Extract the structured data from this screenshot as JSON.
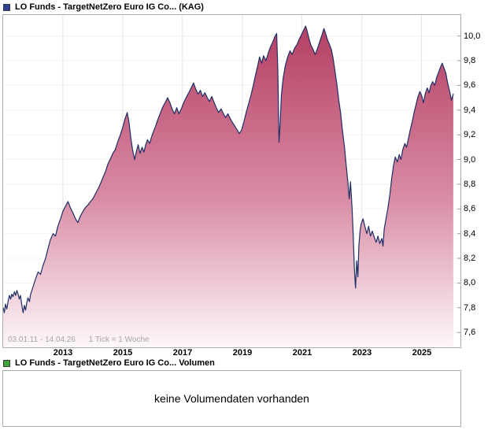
{
  "price_panel": {
    "legend_color": "#2e3f96",
    "title": "LO Funds - TargetNetZero Euro IG Co... (KAG)"
  },
  "volume_panel": {
    "legend_color": "#3da43b",
    "title": "LO Funds - TargetNetZero Euro IG Co... Volumen",
    "message": "keine Volumendaten vorhanden"
  },
  "chart_data": {
    "type": "area",
    "title": "LO Funds - TargetNetZero Euro IG Co... (KAG)",
    "period_label": "03.01.11 - 14.04.26",
    "tick_label": "1 Tick = 1 Woche",
    "xlabel": "",
    "ylabel": "",
    "xlim": [
      2011.0,
      2026.3
    ],
    "ylim": [
      7.48,
      10.17
    ],
    "x_ticks": [
      2013,
      2015,
      2017,
      2019,
      2021,
      2023,
      2025
    ],
    "y_ticks": [
      {
        "v": 7.6,
        "label": "7,6"
      },
      {
        "v": 7.8,
        "label": "7,8"
      },
      {
        "v": 8.0,
        "label": "8,0"
      },
      {
        "v": 8.2,
        "label": "8,2"
      },
      {
        "v": 8.4,
        "label": "8,4"
      },
      {
        "v": 8.6,
        "label": "8,6"
      },
      {
        "v": 8.8,
        "label": "8,8"
      },
      {
        "v": 9.0,
        "label": "9,0"
      },
      {
        "v": 9.2,
        "label": "9,2"
      },
      {
        "v": 9.4,
        "label": "9,4"
      },
      {
        "v": 9.6,
        "label": "9,6"
      },
      {
        "v": 9.8,
        "label": "9,8"
      },
      {
        "v": 10.0,
        "label": "10,0"
      }
    ],
    "grid": true,
    "legend_position": "top-left",
    "line_color": "#1e2f66",
    "fill_top": "#b23a5f",
    "fill_mid": "#d98ca4",
    "fill_bottom": "#fdf7f9",
    "points": [
      [
        2011.0,
        7.8
      ],
      [
        2011.04,
        7.76
      ],
      [
        2011.08,
        7.83
      ],
      [
        2011.12,
        7.79
      ],
      [
        2011.17,
        7.86
      ],
      [
        2011.21,
        7.9
      ],
      [
        2011.25,
        7.87
      ],
      [
        2011.29,
        7.91
      ],
      [
        2011.33,
        7.89
      ],
      [
        2011.38,
        7.93
      ],
      [
        2011.42,
        7.9
      ],
      [
        2011.46,
        7.94
      ],
      [
        2011.5,
        7.91
      ],
      [
        2011.54,
        7.87
      ],
      [
        2011.58,
        7.9
      ],
      [
        2011.62,
        7.83
      ],
      [
        2011.67,
        7.76
      ],
      [
        2011.71,
        7.82
      ],
      [
        2011.75,
        7.78
      ],
      [
        2011.79,
        7.84
      ],
      [
        2011.83,
        7.88
      ],
      [
        2011.88,
        7.85
      ],
      [
        2011.92,
        7.91
      ],
      [
        2011.96,
        7.94
      ],
      [
        2012.0,
        7.97
      ],
      [
        2012.08,
        8.03
      ],
      [
        2012.17,
        8.09
      ],
      [
        2012.25,
        8.07
      ],
      [
        2012.33,
        8.14
      ],
      [
        2012.42,
        8.2
      ],
      [
        2012.5,
        8.28
      ],
      [
        2012.58,
        8.35
      ],
      [
        2012.67,
        8.4
      ],
      [
        2012.75,
        8.38
      ],
      [
        2012.83,
        8.46
      ],
      [
        2012.92,
        8.52
      ],
      [
        2013.0,
        8.58
      ],
      [
        2013.08,
        8.62
      ],
      [
        2013.17,
        8.66
      ],
      [
        2013.25,
        8.61
      ],
      [
        2013.33,
        8.57
      ],
      [
        2013.42,
        8.52
      ],
      [
        2013.5,
        8.49
      ],
      [
        2013.58,
        8.54
      ],
      [
        2013.67,
        8.58
      ],
      [
        2013.75,
        8.61
      ],
      [
        2013.83,
        8.63
      ],
      [
        2013.92,
        8.66
      ],
      [
        2014.0,
        8.68
      ],
      [
        2014.08,
        8.72
      ],
      [
        2014.17,
        8.76
      ],
      [
        2014.25,
        8.8
      ],
      [
        2014.33,
        8.85
      ],
      [
        2014.42,
        8.9
      ],
      [
        2014.5,
        8.96
      ],
      [
        2014.58,
        9.0
      ],
      [
        2014.67,
        9.05
      ],
      [
        2014.75,
        9.08
      ],
      [
        2014.83,
        9.14
      ],
      [
        2014.92,
        9.2
      ],
      [
        2015.0,
        9.26
      ],
      [
        2015.08,
        9.33
      ],
      [
        2015.15,
        9.38
      ],
      [
        2015.21,
        9.3
      ],
      [
        2015.27,
        9.18
      ],
      [
        2015.33,
        9.08
      ],
      [
        2015.4,
        9.0
      ],
      [
        2015.46,
        9.07
      ],
      [
        2015.52,
        9.12
      ],
      [
        2015.58,
        9.05
      ],
      [
        2015.65,
        9.1
      ],
      [
        2015.71,
        9.06
      ],
      [
        2015.77,
        9.12
      ],
      [
        2015.83,
        9.16
      ],
      [
        2015.9,
        9.13
      ],
      [
        2015.96,
        9.18
      ],
      [
        2016.02,
        9.22
      ],
      [
        2016.1,
        9.27
      ],
      [
        2016.17,
        9.32
      ],
      [
        2016.25,
        9.37
      ],
      [
        2016.33,
        9.42
      ],
      [
        2016.42,
        9.46
      ],
      [
        2016.5,
        9.5
      ],
      [
        2016.58,
        9.46
      ],
      [
        2016.65,
        9.41
      ],
      [
        2016.73,
        9.37
      ],
      [
        2016.81,
        9.42
      ],
      [
        2016.88,
        9.37
      ],
      [
        2016.96,
        9.41
      ],
      [
        2017.04,
        9.46
      ],
      [
        2017.12,
        9.5
      ],
      [
        2017.21,
        9.54
      ],
      [
        2017.29,
        9.58
      ],
      [
        2017.37,
        9.62
      ],
      [
        2017.44,
        9.57
      ],
      [
        2017.52,
        9.53
      ],
      [
        2017.6,
        9.56
      ],
      [
        2017.67,
        9.51
      ],
      [
        2017.75,
        9.54
      ],
      [
        2017.83,
        9.5
      ],
      [
        2017.9,
        9.47
      ],
      [
        2017.98,
        9.51
      ],
      [
        2018.06,
        9.46
      ],
      [
        2018.13,
        9.42
      ],
      [
        2018.21,
        9.38
      ],
      [
        2018.29,
        9.41
      ],
      [
        2018.37,
        9.37
      ],
      [
        2018.44,
        9.34
      ],
      [
        2018.52,
        9.37
      ],
      [
        2018.6,
        9.33
      ],
      [
        2018.67,
        9.3
      ],
      [
        2018.75,
        9.27
      ],
      [
        2018.83,
        9.24
      ],
      [
        2018.9,
        9.21
      ],
      [
        2018.98,
        9.24
      ],
      [
        2019.06,
        9.31
      ],
      [
        2019.13,
        9.38
      ],
      [
        2019.21,
        9.45
      ],
      [
        2019.29,
        9.52
      ],
      [
        2019.37,
        9.6
      ],
      [
        2019.44,
        9.68
      ],
      [
        2019.52,
        9.76
      ],
      [
        2019.58,
        9.83
      ],
      [
        2019.65,
        9.78
      ],
      [
        2019.71,
        9.84
      ],
      [
        2019.79,
        9.8
      ],
      [
        2019.87,
        9.86
      ],
      [
        2019.94,
        9.91
      ],
      [
        2020.02,
        9.95
      ],
      [
        2020.1,
        10.0
      ],
      [
        2020.15,
        10.02
      ],
      [
        2020.19,
        9.72
      ],
      [
        2020.23,
        9.14
      ],
      [
        2020.27,
        9.3
      ],
      [
        2020.31,
        9.52
      ],
      [
        2020.37,
        9.66
      ],
      [
        2020.44,
        9.76
      ],
      [
        2020.52,
        9.83
      ],
      [
        2020.6,
        9.88
      ],
      [
        2020.67,
        9.85
      ],
      [
        2020.75,
        9.9
      ],
      [
        2020.83,
        9.93
      ],
      [
        2020.9,
        9.97
      ],
      [
        2020.98,
        10.01
      ],
      [
        2021.06,
        10.05
      ],
      [
        2021.12,
        10.08
      ],
      [
        2021.17,
        10.04
      ],
      [
        2021.23,
        9.98
      ],
      [
        2021.29,
        9.93
      ],
      [
        2021.37,
        9.89
      ],
      [
        2021.44,
        9.85
      ],
      [
        2021.52,
        9.9
      ],
      [
        2021.6,
        9.96
      ],
      [
        2021.67,
        10.01
      ],
      [
        2021.73,
        10.06
      ],
      [
        2021.79,
        10.02
      ],
      [
        2021.85,
        9.97
      ],
      [
        2021.92,
        9.93
      ],
      [
        2021.98,
        9.89
      ],
      [
        2022.04,
        9.82
      ],
      [
        2022.1,
        9.72
      ],
      [
        2022.17,
        9.6
      ],
      [
        2022.23,
        9.48
      ],
      [
        2022.29,
        9.38
      ],
      [
        2022.35,
        9.24
      ],
      [
        2022.42,
        9.1
      ],
      [
        2022.48,
        8.95
      ],
      [
        2022.54,
        8.8
      ],
      [
        2022.58,
        8.68
      ],
      [
        2022.62,
        8.82
      ],
      [
        2022.67,
        8.62
      ],
      [
        2022.71,
        8.4
      ],
      [
        2022.75,
        8.12
      ],
      [
        2022.79,
        7.96
      ],
      [
        2022.83,
        8.18
      ],
      [
        2022.87,
        8.05
      ],
      [
        2022.9,
        8.3
      ],
      [
        2022.94,
        8.42
      ],
      [
        2022.98,
        8.48
      ],
      [
        2023.04,
        8.52
      ],
      [
        2023.1,
        8.46
      ],
      [
        2023.17,
        8.4
      ],
      [
        2023.23,
        8.46
      ],
      [
        2023.29,
        8.38
      ],
      [
        2023.35,
        8.42
      ],
      [
        2023.42,
        8.37
      ],
      [
        2023.48,
        8.33
      ],
      [
        2023.54,
        8.38
      ],
      [
        2023.6,
        8.32
      ],
      [
        2023.67,
        8.36
      ],
      [
        2023.71,
        8.3
      ],
      [
        2023.75,
        8.44
      ],
      [
        2023.81,
        8.52
      ],
      [
        2023.87,
        8.6
      ],
      [
        2023.94,
        8.72
      ],
      [
        2024.0,
        8.85
      ],
      [
        2024.06,
        8.95
      ],
      [
        2024.12,
        9.02
      ],
      [
        2024.19,
        8.98
      ],
      [
        2024.25,
        9.04
      ],
      [
        2024.31,
        9.0
      ],
      [
        2024.37,
        9.08
      ],
      [
        2024.44,
        9.13
      ],
      [
        2024.5,
        9.1
      ],
      [
        2024.56,
        9.17
      ],
      [
        2024.62,
        9.24
      ],
      [
        2024.69,
        9.31
      ],
      [
        2024.75,
        9.38
      ],
      [
        2024.81,
        9.44
      ],
      [
        2024.87,
        9.5
      ],
      [
        2024.94,
        9.55
      ],
      [
        2025.0,
        9.52
      ],
      [
        2025.06,
        9.46
      ],
      [
        2025.12,
        9.53
      ],
      [
        2025.19,
        9.58
      ],
      [
        2025.25,
        9.54
      ],
      [
        2025.31,
        9.6
      ],
      [
        2025.37,
        9.63
      ],
      [
        2025.44,
        9.6
      ],
      [
        2025.5,
        9.66
      ],
      [
        2025.56,
        9.7
      ],
      [
        2025.62,
        9.74
      ],
      [
        2025.69,
        9.78
      ],
      [
        2025.75,
        9.74
      ],
      [
        2025.81,
        9.7
      ],
      [
        2025.87,
        9.62
      ],
      [
        2025.94,
        9.55
      ],
      [
        2026.0,
        9.48
      ],
      [
        2026.06,
        9.53
      ]
    ]
  }
}
